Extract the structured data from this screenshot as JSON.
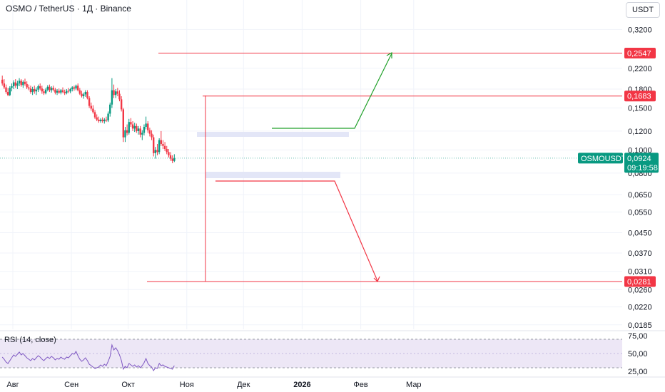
{
  "header": {
    "title": "OSMO / TetherUS · 1Д · Binance",
    "currency": "USDT"
  },
  "colors": {
    "up": "#089981",
    "down": "#f23645",
    "target_line": "#f23645",
    "up_path": "#21a12a",
    "down_path": "#f23645",
    "zone": "#e3e6f7",
    "rsi_line": "#7e57c2",
    "rsi_band": "#ede7f6",
    "grid": "#f0f3fa"
  },
  "chart_data": {
    "type": "candlestick",
    "symbol": "OSMOUSDT",
    "scale": "log",
    "ylim": [
      0.0175,
      0.34
    ],
    "price_ticks": [
      "0,3200",
      "0,2200",
      "0,1800",
      "0,1500",
      "0,1200",
      "0,1000",
      "0,0800",
      "0,0650",
      "0,0550",
      "0,0450",
      "0,0370",
      "0,0310",
      "0,0260",
      "0,0220",
      "0,0185"
    ],
    "price_tick_values": [
      0.32,
      0.22,
      0.18,
      0.15,
      0.12,
      0.1,
      0.08,
      0.065,
      0.055,
      0.045,
      0.037,
      0.031,
      0.026,
      0.022,
      0.0185
    ],
    "x_ticks": [
      {
        "label": "Авг",
        "day": 0
      },
      {
        "label": "Сен",
        "day": 31
      },
      {
        "label": "Окт",
        "day": 61
      },
      {
        "label": "Ноя",
        "day": 92
      },
      {
        "label": "Дек",
        "day": 122
      },
      {
        "label": "2026",
        "day": 153,
        "bold": true
      },
      {
        "label": "Фев",
        "day": 184
      },
      {
        "label": "Мар",
        "day": 212
      }
    ],
    "candles": [
      [
        0.197,
        0.205,
        0.186,
        0.19
      ],
      [
        0.19,
        0.198,
        0.18,
        0.183
      ],
      [
        0.183,
        0.188,
        0.172,
        0.175
      ],
      [
        0.175,
        0.182,
        0.168,
        0.17
      ],
      [
        0.17,
        0.185,
        0.168,
        0.182
      ],
      [
        0.182,
        0.19,
        0.176,
        0.185
      ],
      [
        0.185,
        0.196,
        0.18,
        0.192
      ],
      [
        0.192,
        0.198,
        0.182,
        0.186
      ],
      [
        0.186,
        0.195,
        0.18,
        0.19
      ],
      [
        0.19,
        0.2,
        0.185,
        0.195
      ],
      [
        0.195,
        0.198,
        0.184,
        0.187
      ],
      [
        0.187,
        0.196,
        0.182,
        0.193
      ],
      [
        0.193,
        0.199,
        0.186,
        0.189
      ],
      [
        0.189,
        0.194,
        0.18,
        0.183
      ],
      [
        0.183,
        0.188,
        0.178,
        0.181
      ],
      [
        0.181,
        0.186,
        0.172,
        0.175
      ],
      [
        0.175,
        0.184,
        0.17,
        0.18
      ],
      [
        0.18,
        0.186,
        0.172,
        0.176
      ],
      [
        0.176,
        0.183,
        0.17,
        0.179
      ],
      [
        0.179,
        0.188,
        0.175,
        0.185
      ],
      [
        0.185,
        0.19,
        0.178,
        0.181
      ],
      [
        0.181,
        0.186,
        0.172,
        0.176
      ],
      [
        0.176,
        0.18,
        0.17,
        0.173
      ],
      [
        0.173,
        0.182,
        0.171,
        0.179
      ],
      [
        0.179,
        0.187,
        0.176,
        0.184
      ],
      [
        0.184,
        0.188,
        0.175,
        0.178
      ],
      [
        0.178,
        0.185,
        0.174,
        0.182
      ],
      [
        0.182,
        0.186,
        0.176,
        0.179
      ],
      [
        0.179,
        0.182,
        0.171,
        0.174
      ],
      [
        0.174,
        0.18,
        0.17,
        0.177
      ],
      [
        0.177,
        0.181,
        0.172,
        0.174
      ],
      [
        0.174,
        0.18,
        0.171,
        0.178
      ],
      [
        0.178,
        0.183,
        0.173,
        0.175
      ],
      [
        0.175,
        0.179,
        0.17,
        0.173
      ],
      [
        0.173,
        0.18,
        0.171,
        0.177
      ],
      [
        0.177,
        0.182,
        0.173,
        0.176
      ],
      [
        0.176,
        0.182,
        0.173,
        0.18
      ],
      [
        0.18,
        0.185,
        0.176,
        0.183
      ],
      [
        0.183,
        0.186,
        0.177,
        0.181
      ],
      [
        0.181,
        0.188,
        0.178,
        0.186
      ],
      [
        0.186,
        0.19,
        0.176,
        0.178
      ],
      [
        0.178,
        0.182,
        0.17,
        0.172
      ],
      [
        0.172,
        0.177,
        0.166,
        0.168
      ],
      [
        0.168,
        0.174,
        0.164,
        0.171
      ],
      [
        0.171,
        0.178,
        0.167,
        0.175
      ],
      [
        0.175,
        0.178,
        0.163,
        0.165
      ],
      [
        0.165,
        0.168,
        0.15,
        0.153
      ],
      [
        0.153,
        0.158,
        0.146,
        0.149
      ],
      [
        0.149,
        0.154,
        0.142,
        0.144
      ],
      [
        0.144,
        0.147,
        0.135,
        0.137
      ],
      [
        0.137,
        0.141,
        0.132,
        0.134
      ],
      [
        0.134,
        0.138,
        0.13,
        0.132
      ],
      [
        0.132,
        0.136,
        0.13,
        0.134
      ],
      [
        0.134,
        0.137,
        0.13,
        0.132
      ],
      [
        0.132,
        0.136,
        0.129,
        0.134
      ],
      [
        0.134,
        0.138,
        0.131,
        0.133
      ],
      [
        0.133,
        0.145,
        0.131,
        0.142
      ],
      [
        0.142,
        0.158,
        0.138,
        0.155
      ],
      [
        0.155,
        0.2,
        0.15,
        0.178
      ],
      [
        0.178,
        0.188,
        0.165,
        0.17
      ],
      [
        0.17,
        0.18,
        0.165,
        0.176
      ],
      [
        0.176,
        0.182,
        0.168,
        0.172
      ],
      [
        0.172,
        0.178,
        0.16,
        0.163
      ],
      [
        0.163,
        0.168,
        0.145,
        0.148
      ],
      [
        0.148,
        0.15,
        0.108,
        0.113
      ],
      [
        0.113,
        0.125,
        0.108,
        0.121
      ],
      [
        0.121,
        0.128,
        0.115,
        0.118
      ],
      [
        0.118,
        0.135,
        0.116,
        0.131
      ],
      [
        0.131,
        0.136,
        0.125,
        0.128
      ],
      [
        0.128,
        0.132,
        0.12,
        0.123
      ],
      [
        0.123,
        0.13,
        0.119,
        0.126
      ],
      [
        0.126,
        0.129,
        0.118,
        0.12
      ],
      [
        0.12,
        0.126,
        0.116,
        0.123
      ],
      [
        0.123,
        0.126,
        0.113,
        0.116
      ],
      [
        0.116,
        0.121,
        0.11,
        0.118
      ],
      [
        0.118,
        0.128,
        0.115,
        0.125
      ],
      [
        0.125,
        0.138,
        0.122,
        0.129
      ],
      [
        0.129,
        0.132,
        0.118,
        0.121
      ],
      [
        0.121,
        0.124,
        0.114,
        0.117
      ],
      [
        0.117,
        0.121,
        0.11,
        0.113
      ],
      [
        0.113,
        0.116,
        0.094,
        0.097
      ],
      [
        0.097,
        0.103,
        0.092,
        0.1
      ],
      [
        0.1,
        0.106,
        0.095,
        0.098
      ],
      [
        0.098,
        0.112,
        0.096,
        0.11
      ],
      [
        0.11,
        0.12,
        0.104,
        0.106
      ],
      [
        0.106,
        0.11,
        0.101,
        0.104
      ],
      [
        0.104,
        0.108,
        0.099,
        0.101
      ],
      [
        0.101,
        0.104,
        0.096,
        0.098
      ],
      [
        0.098,
        0.101,
        0.093,
        0.095
      ],
      [
        0.095,
        0.098,
        0.09,
        0.092
      ],
      [
        0.092,
        0.095,
        0.088,
        0.09
      ],
      [
        0.09,
        0.096,
        0.089,
        0.0924
      ]
    ],
    "levels": [
      {
        "value": 0.2547,
        "label": "0,2547"
      },
      {
        "value": 0.1683,
        "label": "0,1683"
      },
      {
        "value": 0.0281,
        "label": "0,0281"
      }
    ],
    "last_price": {
      "symbol": "OSMOUSDT",
      "value": 0.0924,
      "label": "0,0924",
      "countdown": "09:19:58"
    },
    "rsi": {
      "label": "RSI (14, close)",
      "ticks": [
        "75,00",
        "50,00",
        "25,00"
      ],
      "tick_values": [
        75,
        50,
        25
      ],
      "band": [
        30,
        70
      ],
      "ylim": [
        20,
        80
      ],
      "values": [
        45,
        42,
        38,
        36,
        40,
        44,
        48,
        46,
        49,
        52,
        48,
        50,
        47,
        44,
        42,
        40,
        43,
        41,
        44,
        47,
        45,
        42,
        40,
        43,
        45,
        43,
        46,
        44,
        41,
        43,
        42,
        45,
        43,
        42,
        45,
        44,
        47,
        50,
        49,
        53,
        47,
        42,
        39,
        41,
        44,
        40,
        35,
        33,
        31,
        29,
        30,
        31,
        34,
        32,
        35,
        33,
        39,
        46,
        62,
        55,
        58,
        54,
        48,
        40,
        28,
        32,
        30,
        36,
        34,
        32,
        34,
        31,
        33,
        30,
        33,
        37,
        43,
        36,
        33,
        31,
        26,
        30,
        29,
        36,
        33,
        34,
        32,
        31,
        30,
        29,
        28,
        33
      ]
    }
  }
}
